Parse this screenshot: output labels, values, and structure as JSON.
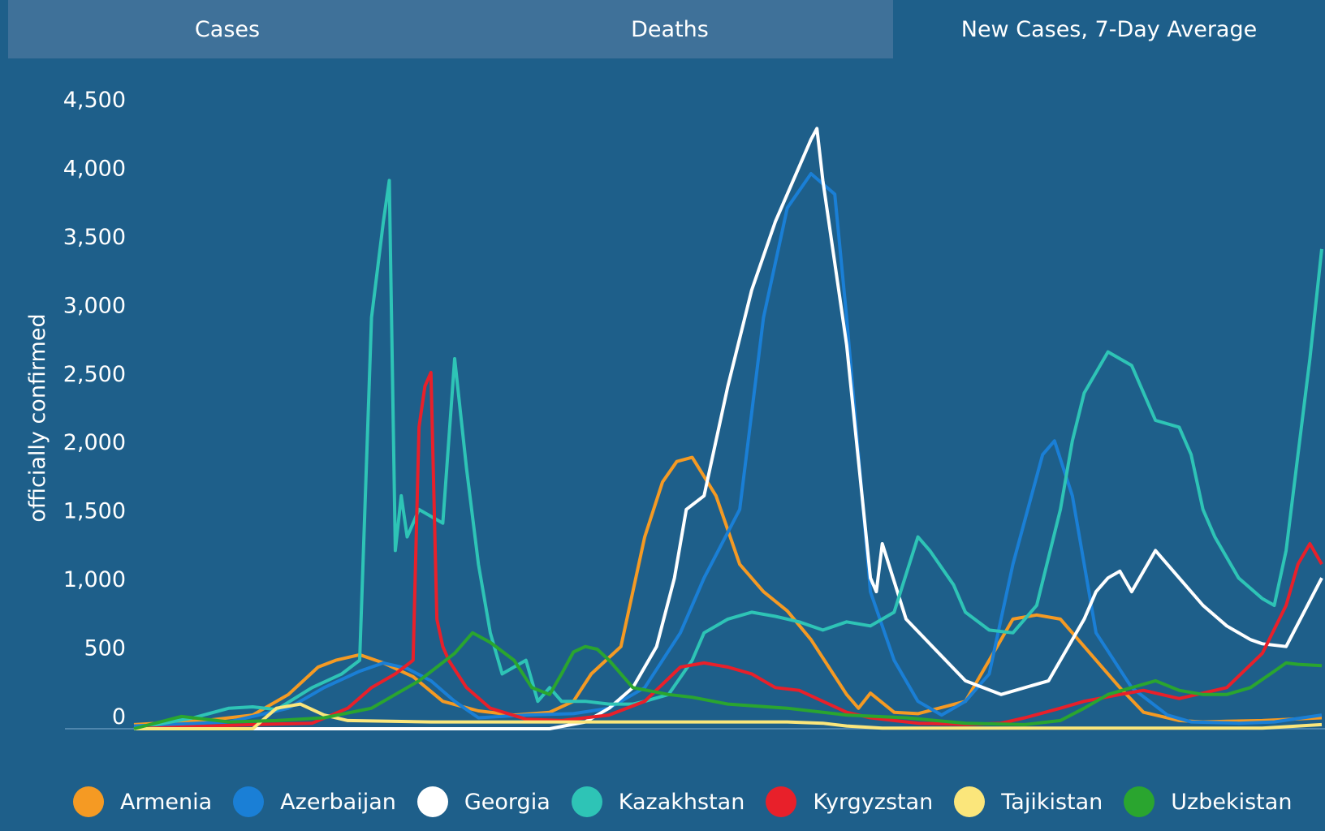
{
  "tabs": [
    {
      "label": "Cases",
      "active": false
    },
    {
      "label": "Deaths",
      "active": false
    },
    {
      "label": "New Cases, 7-Day Average",
      "active": true
    }
  ],
  "chart_data": {
    "type": "line",
    "title": "",
    "xlabel": "",
    "ylabel": "officially confirmed",
    "ylim": [
      0,
      4500
    ],
    "yticks": [
      0,
      500,
      1000,
      1500,
      2000,
      2500,
      3000,
      3500,
      4000,
      4500
    ],
    "ytick_labels": [
      "0",
      "500",
      "1,000",
      "1,500",
      "2,000",
      "2,500",
      "3,000",
      "3,500",
      "4,000",
      "4,500"
    ],
    "xlim": [
      0,
      1
    ],
    "grid": false,
    "legend_position": "bottom",
    "series": [
      {
        "name": "Armenia",
        "color": "#f59a23",
        "x": [
          0,
          0.06,
          0.1,
          0.13,
          0.155,
          0.17,
          0.19,
          0.21,
          0.235,
          0.26,
          0.29,
          0.32,
          0.35,
          0.37,
          0.385,
          0.41,
          0.43,
          0.445,
          0.457,
          0.47,
          0.49,
          0.51,
          0.53,
          0.55,
          0.57,
          0.6,
          0.61,
          0.62,
          0.64,
          0.66,
          0.7,
          0.72,
          0.74,
          0.76,
          0.78,
          0.8,
          0.83,
          0.85,
          0.88,
          0.9,
          0.92,
          0.95,
          1
        ],
        "y": [
          30,
          60,
          100,
          250,
          450,
          500,
          540,
          480,
          380,
          200,
          130,
          100,
          120,
          200,
          400,
          600,
          1400,
          1800,
          1950,
          1980,
          1700,
          1200,
          1000,
          860,
          650,
          250,
          150,
          260,
          120,
          110,
          200,
          500,
          800,
          830,
          800,
          600,
          300,
          120,
          60,
          50,
          55,
          60,
          80
        ]
      },
      {
        "name": "Azerbaijan",
        "color": "#1a7fd6",
        "x": [
          0,
          0.08,
          0.13,
          0.16,
          0.19,
          0.21,
          0.23,
          0.25,
          0.27,
          0.29,
          0.33,
          0.37,
          0.4,
          0.43,
          0.46,
          0.48,
          0.51,
          0.53,
          0.55,
          0.57,
          0.59,
          0.6,
          0.61,
          0.62,
          0.64,
          0.66,
          0.68,
          0.7,
          0.72,
          0.74,
          0.765,
          0.775,
          0.79,
          0.8,
          0.81,
          0.84,
          0.87,
          0.89,
          0.93,
          0.96,
          1
        ],
        "y": [
          20,
          50,
          150,
          300,
          420,
          480,
          440,
          350,
          200,
          80,
          100,
          110,
          150,
          300,
          700,
          1100,
          1600,
          3000,
          3800,
          4050,
          3900,
          3000,
          2000,
          1000,
          500,
          200,
          100,
          200,
          400,
          1200,
          2000,
          2100,
          1700,
          1200,
          700,
          300,
          100,
          50,
          40,
          50,
          100
        ]
      },
      {
        "name": "Georgia",
        "color": "#ffffff",
        "x": [
          0,
          0.1,
          0.15,
          0.2,
          0.25,
          0.3,
          0.35,
          0.38,
          0.4,
          0.42,
          0.44,
          0.455,
          0.465,
          0.48,
          0.5,
          0.52,
          0.54,
          0.56,
          0.57,
          0.575,
          0.58,
          0.6,
          0.62,
          0.625,
          0.63,
          0.65,
          0.7,
          0.73,
          0.77,
          0.8,
          0.81,
          0.82,
          0.83,
          0.84,
          0.86,
          0.88,
          0.9,
          0.92,
          0.94,
          0.95,
          0.97,
          1
        ],
        "y": [
          0,
          0,
          0,
          0,
          0,
          0,
          0,
          50,
          150,
          300,
          600,
          1100,
          1600,
          1700,
          2500,
          3200,
          3700,
          4100,
          4300,
          4380,
          4000,
          2800,
          1100,
          1000,
          1350,
          800,
          350,
          250,
          350,
          800,
          1000,
          1100,
          1150,
          1000,
          1300,
          1100,
          900,
          750,
          650,
          620,
          600,
          1100
        ]
      },
      {
        "name": "Kazakhstan",
        "color": "#2ec4b6",
        "x": [
          0,
          0.05,
          0.08,
          0.1,
          0.12,
          0.15,
          0.175,
          0.19,
          0.2,
          0.21,
          0.215,
          0.22,
          0.225,
          0.23,
          0.24,
          0.26,
          0.27,
          0.28,
          0.29,
          0.3,
          0.31,
          0.33,
          0.34,
          0.35,
          0.36,
          0.38,
          0.4,
          0.42,
          0.43,
          0.45,
          0.47,
          0.48,
          0.5,
          0.52,
          0.54,
          0.56,
          0.58,
          0.6,
          0.62,
          0.64,
          0.66,
          0.67,
          0.69,
          0.7,
          0.72,
          0.74,
          0.76,
          0.78,
          0.79,
          0.8,
          0.82,
          0.84,
          0.86,
          0.88,
          0.89,
          0.9,
          0.91,
          0.93,
          0.95,
          0.96,
          0.97,
          0.98,
          0.99,
          1
        ],
        "y": [
          0,
          80,
          150,
          160,
          140,
          300,
          400,
          500,
          3000,
          3700,
          4000,
          1300,
          1700,
          1400,
          1600,
          1500,
          2700,
          1900,
          1200,
          700,
          400,
          500,
          200,
          300,
          200,
          200,
          180,
          180,
          200,
          250,
          500,
          700,
          800,
          850,
          820,
          780,
          720,
          780,
          750,
          850,
          1400,
          1300,
          1050,
          850,
          720,
          700,
          900,
          1600,
          2100,
          2450,
          2750,
          2650,
          2250,
          2200,
          2000,
          1600,
          1400,
          1100,
          950,
          900,
          1300,
          2000,
          2700,
          3500
        ]
      },
      {
        "name": "Kyrgyzstan",
        "color": "#e8202a",
        "x": [
          0,
          0.1,
          0.15,
          0.18,
          0.2,
          0.22,
          0.235,
          0.24,
          0.245,
          0.25,
          0.255,
          0.26,
          0.265,
          0.28,
          0.3,
          0.33,
          0.36,
          0.4,
          0.43,
          0.46,
          0.48,
          0.5,
          0.52,
          0.54,
          0.56,
          0.58,
          0.6,
          0.62,
          0.64,
          0.66,
          0.7,
          0.73,
          0.75,
          0.78,
          0.8,
          0.83,
          0.85,
          0.88,
          0.92,
          0.95,
          0.97,
          0.98,
          0.99,
          1
        ],
        "y": [
          0,
          30,
          40,
          150,
          300,
          400,
          500,
          2200,
          2500,
          2600,
          800,
          600,
          500,
          300,
          150,
          70,
          60,
          100,
          200,
          450,
          480,
          450,
          400,
          300,
          280,
          200,
          120,
          80,
          60,
          40,
          30,
          40,
          80,
          150,
          200,
          250,
          280,
          220,
          300,
          550,
          900,
          1200,
          1350,
          1200
        ]
      },
      {
        "name": "Tajikistan",
        "color": "#fbe67b",
        "x": [
          0,
          0.1,
          0.12,
          0.14,
          0.16,
          0.18,
          0.25,
          0.35,
          0.45,
          0.55,
          0.58,
          0.6,
          0.63,
          0.7,
          0.8,
          0.9,
          0.95,
          1
        ],
        "y": [
          0,
          0,
          150,
          180,
          100,
          60,
          50,
          50,
          50,
          50,
          40,
          20,
          5,
          5,
          5,
          5,
          5,
          30
        ]
      },
      {
        "name": "Uzbekistan",
        "color": "#2aa52f",
        "x": [
          0,
          0.04,
          0.08,
          0.12,
          0.16,
          0.2,
          0.24,
          0.27,
          0.285,
          0.3,
          0.32,
          0.335,
          0.35,
          0.36,
          0.37,
          0.38,
          0.39,
          0.4,
          0.42,
          0.45,
          0.47,
          0.5,
          0.55,
          0.6,
          0.65,
          0.7,
          0.75,
          0.78,
          0.8,
          0.82,
          0.84,
          0.86,
          0.88,
          0.9,
          0.92,
          0.94,
          0.96,
          0.97,
          0.98,
          1
        ],
        "y": [
          0,
          90,
          50,
          60,
          80,
          150,
          350,
          550,
          700,
          630,
          500,
          300,
          250,
          400,
          560,
          600,
          580,
          500,
          300,
          250,
          230,
          180,
          150,
          100,
          80,
          40,
          30,
          60,
          150,
          250,
          300,
          350,
          280,
          250,
          250,
          300,
          420,
          480,
          470,
          460
        ]
      }
    ]
  }
}
